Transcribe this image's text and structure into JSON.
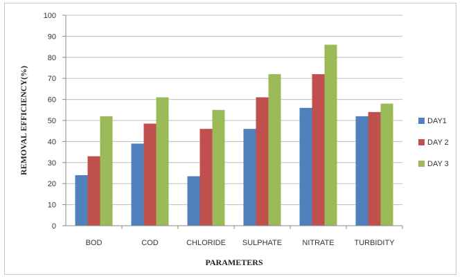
{
  "chart_data": {
    "type": "bar",
    "title": "",
    "xlabel": "PARAMETERS",
    "ylabel": "REMOVAL EFFICIENCY(%)",
    "categories": [
      "BOD",
      "COD",
      "CHLORIDE",
      "SULPHATE",
      "NITRATE",
      "TURBIDITY"
    ],
    "series": [
      {
        "name": "DAY1",
        "color": "#4F81BD",
        "values": [
          24,
          39,
          23.5,
          46,
          56,
          52
        ]
      },
      {
        "name": "DAY 2",
        "color": "#C0504D",
        "values": [
          33,
          48.5,
          46,
          61,
          72,
          54
        ]
      },
      {
        "name": "DAY 3",
        "color": "#9BBB59",
        "values": [
          52,
          61,
          55,
          72,
          86,
          58
        ]
      }
    ],
    "ylim": [
      0,
      100
    ],
    "yticks": [
      0,
      10,
      20,
      30,
      40,
      50,
      60,
      70,
      80,
      90,
      100
    ],
    "grid": true,
    "legend": "right"
  }
}
